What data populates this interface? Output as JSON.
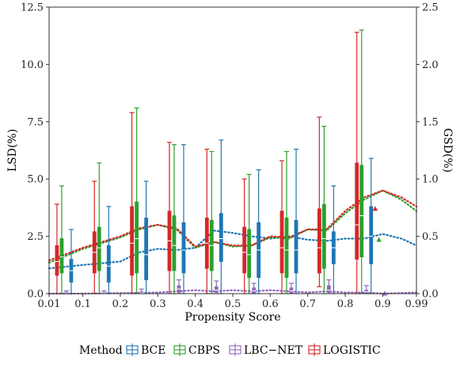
{
  "chart_data": {
    "type": "box-with-smooth-lines",
    "xlabel": "Propensity Score",
    "ylabel_left": "LSD(%)",
    "ylabel_right": "GSD(%)",
    "xlim": [
      0.01,
      0.99
    ],
    "ylim_left": [
      0,
      12.5
    ],
    "ylim_right": [
      0,
      2.5
    ],
    "x_ticks": [
      0.01,
      0.1,
      0.2,
      0.3,
      0.4,
      0.5,
      0.6,
      0.7,
      0.8,
      0.9,
      0.99
    ],
    "x_tick_labels": [
      "0.01",
      "0.1",
      "0.2",
      "0.3",
      "0.4",
      "0.5",
      "0.6",
      "0.7",
      "0.8",
      "0.9",
      "0.99"
    ],
    "y_ticks_left": [
      0,
      2.5,
      5,
      7.5,
      10,
      12.5
    ],
    "y_tick_labels_left": [
      "0.0",
      "2.5",
      "5.0",
      "7.5",
      "10.0",
      "12.5"
    ],
    "y_ticks_right": [
      0,
      0.5,
      1,
      1.5,
      2,
      2.5
    ],
    "y_tick_labels_right": [
      "0.0",
      "0.5",
      "1.0",
      "1.5",
      "2.0",
      "2.5"
    ],
    "grid": false,
    "legend": {
      "title": "Method",
      "placement": "bottom",
      "entries": [
        "BCE",
        "CBPS",
        "LBC−NET",
        "LOGISTIC"
      ]
    },
    "colors": {
      "BCE": "#1f77b4",
      "CBPS": "#2ca02c",
      "LBC-NET": "#9467bd",
      "LOGISTIC": "#d62728"
    },
    "box_groups": [
      {
        "center": 0.05,
        "boxes": {
          "LOGISTIC": {
            "whisker_low": 0.0,
            "q1": 0.8,
            "median": 1.4,
            "q3": 2.1,
            "whisker_high": 3.9
          },
          "CBPS": {
            "whisker_low": 0.0,
            "q1": 0.9,
            "median": 1.6,
            "q3": 2.4,
            "whisker_high": 4.7
          },
          "LBC-NET": {
            "whisker_low": 0.0,
            "q1": 0.0,
            "median": 0.02,
            "q3": 0.05,
            "whisker_high": 0.12
          },
          "BCE": {
            "whisker_low": 0.0,
            "q1": 0.5,
            "median": 1.0,
            "q3": 1.5,
            "whisker_high": 2.8
          }
        }
      },
      {
        "center": 0.15,
        "boxes": {
          "LOGISTIC": {
            "whisker_low": 0.0,
            "q1": 0.9,
            "median": 1.8,
            "q3": 2.7,
            "whisker_high": 4.9
          },
          "CBPS": {
            "whisker_low": 0.0,
            "q1": 1.0,
            "median": 2.0,
            "q3": 2.9,
            "whisker_high": 5.7
          },
          "LBC-NET": {
            "whisker_low": 0.0,
            "q1": 0.0,
            "median": 0.02,
            "q3": 0.05,
            "whisker_high": 0.12
          },
          "BCE": {
            "whisker_low": 0.0,
            "q1": 0.5,
            "median": 1.2,
            "q3": 2.1,
            "whisker_high": 3.8
          }
        }
      },
      {
        "center": 0.25,
        "boxes": {
          "LOGISTIC": {
            "whisker_low": 0.0,
            "q1": 0.8,
            "median": 2.2,
            "q3": 3.8,
            "whisker_high": 7.9
          },
          "CBPS": {
            "whisker_low": 0.0,
            "q1": 0.9,
            "median": 2.4,
            "q3": 4.0,
            "whisker_high": 8.1
          },
          "LBC-NET": {
            "whisker_low": 0.0,
            "q1": 0.0,
            "median": 0.03,
            "q3": 0.08,
            "whisker_high": 0.2
          },
          "BCE": {
            "whisker_low": 0.0,
            "q1": 0.6,
            "median": 1.7,
            "q3": 3.3,
            "whisker_high": 4.9
          }
        }
      },
      {
        "center": 0.35,
        "boxes": {
          "LOGISTIC": {
            "whisker_low": 0.0,
            "q1": 1.0,
            "median": 2.3,
            "q3": 3.6,
            "whisker_high": 6.6
          },
          "CBPS": {
            "whisker_low": 0.0,
            "q1": 1.0,
            "median": 2.1,
            "q3": 3.4,
            "whisker_high": 6.5
          },
          "LBC-NET": {
            "whisker_low": 0.0,
            "q1": 0.05,
            "median": 0.2,
            "q3": 0.35,
            "whisker_high": 0.6
          },
          "BCE": {
            "whisker_low": 0.0,
            "q1": 0.9,
            "median": 1.9,
            "q3": 3.1,
            "whisker_high": 6.5
          }
        }
      },
      {
        "center": 0.45,
        "boxes": {
          "LOGISTIC": {
            "whisker_low": 0.0,
            "q1": 1.1,
            "median": 2.2,
            "q3": 3.3,
            "whisker_high": 6.3
          },
          "CBPS": {
            "whisker_low": 0.0,
            "q1": 1.0,
            "median": 2.1,
            "q3": 3.2,
            "whisker_high": 6.2
          },
          "LBC-NET": {
            "whisker_low": 0.0,
            "q1": 0.05,
            "median": 0.15,
            "q3": 0.3,
            "whisker_high": 0.55
          },
          "BCE": {
            "whisker_low": 0.0,
            "q1": 1.4,
            "median": 2.4,
            "q3": 3.5,
            "whisker_high": 6.7
          }
        }
      },
      {
        "center": 0.55,
        "boxes": {
          "LOGISTIC": {
            "whisker_low": 0.0,
            "q1": 0.9,
            "median": 1.8,
            "q3": 2.9,
            "whisker_high": 5.0
          },
          "CBPS": {
            "whisker_low": 0.0,
            "q1": 0.7,
            "median": 1.7,
            "q3": 2.8,
            "whisker_high": 5.2
          },
          "LBC-NET": {
            "whisker_low": 0.0,
            "q1": 0.03,
            "median": 0.12,
            "q3": 0.25,
            "whisker_high": 0.45
          },
          "BCE": {
            "whisker_low": 0.0,
            "q1": 0.7,
            "median": 1.9,
            "q3": 3.1,
            "whisker_high": 5.4
          }
        }
      },
      {
        "center": 0.65,
        "boxes": {
          "LOGISTIC": {
            "whisker_low": 0.0,
            "q1": 0.9,
            "median": 2.0,
            "q3": 3.6,
            "whisker_high": 5.8
          },
          "CBPS": {
            "whisker_low": 0.0,
            "q1": 0.7,
            "median": 1.9,
            "q3": 3.3,
            "whisker_high": 6.2
          },
          "LBC-NET": {
            "whisker_low": 0.0,
            "q1": 0.03,
            "median": 0.12,
            "q3": 0.25,
            "whisker_high": 0.45
          },
          "BCE": {
            "whisker_low": 0.0,
            "q1": 0.9,
            "median": 1.9,
            "q3": 3.2,
            "whisker_high": 6.3
          }
        }
      },
      {
        "center": 0.75,
        "boxes": {
          "LOGISTIC": {
            "whisker_low": 0.3,
            "q1": 0.9,
            "median": 2.0,
            "q3": 3.7,
            "whisker_high": 7.7
          },
          "CBPS": {
            "whisker_low": 0.0,
            "q1": 1.1,
            "median": 2.4,
            "q3": 3.9,
            "whisker_high": 7.3
          },
          "LBC-NET": {
            "whisker_low": 0.0,
            "q1": 0.05,
            "median": 0.15,
            "q3": 0.35,
            "whisker_high": 0.6
          },
          "BCE": {
            "whisker_low": 0.0,
            "q1": 1.3,
            "median": 2.0,
            "q3": 2.7,
            "whisker_high": 4.7
          }
        }
      },
      {
        "center": 0.85,
        "boxes": {
          "LOGISTIC": {
            "whisker_low": 0.0,
            "q1": 1.5,
            "median": 3.0,
            "q3": 5.7,
            "whisker_high": 11.4
          },
          "CBPS": {
            "whisker_low": 0.0,
            "q1": 1.6,
            "median": 3.4,
            "q3": 5.6,
            "whisker_high": 11.5
          },
          "LBC-NET": {
            "whisker_low": 0.0,
            "q1": 0.02,
            "median": 0.08,
            "q3": 0.15,
            "whisker_high": 0.35
          },
          "BCE": {
            "whisker_low": 0.0,
            "q1": 1.3,
            "median": 2.5,
            "q3": 3.8,
            "whisker_high": 5.9
          }
        }
      }
    ],
    "gsd_series": [
      {
        "name": "BCE",
        "axis": "right",
        "x": [
          0.01,
          0.1,
          0.2,
          0.25,
          0.3,
          0.35,
          0.4,
          0.45,
          0.5,
          0.55,
          0.6,
          0.65,
          0.7,
          0.75,
          0.8,
          0.85,
          0.9,
          0.95,
          0.99
        ],
        "y": [
          0.22,
          0.25,
          0.28,
          0.36,
          0.39,
          0.38,
          0.4,
          0.55,
          0.53,
          0.5,
          0.48,
          0.5,
          0.47,
          0.46,
          0.48,
          0.48,
          0.52,
          0.48,
          0.42
        ]
      },
      {
        "name": "CBPS",
        "axis": "right",
        "x": [
          0.01,
          0.1,
          0.2,
          0.25,
          0.3,
          0.35,
          0.4,
          0.45,
          0.5,
          0.55,
          0.6,
          0.65,
          0.7,
          0.75,
          0.8,
          0.85,
          0.9,
          0.95,
          0.99
        ],
        "y": [
          0.27,
          0.39,
          0.49,
          0.56,
          0.6,
          0.56,
          0.4,
          0.45,
          0.41,
          0.42,
          0.49,
          0.48,
          0.56,
          0.55,
          0.7,
          0.82,
          0.9,
          0.82,
          0.72
        ]
      },
      {
        "name": "LOGISTIC",
        "axis": "right",
        "x": [
          0.01,
          0.1,
          0.2,
          0.25,
          0.3,
          0.35,
          0.4,
          0.45,
          0.5,
          0.55,
          0.6,
          0.65,
          0.7,
          0.75,
          0.8,
          0.85,
          0.9,
          0.95,
          0.99
        ],
        "y": [
          0.29,
          0.4,
          0.5,
          0.57,
          0.6,
          0.57,
          0.41,
          0.45,
          0.42,
          0.42,
          0.5,
          0.49,
          0.56,
          0.56,
          0.72,
          0.84,
          0.9,
          0.84,
          0.76
        ]
      },
      {
        "name": "LBC-NET",
        "axis": "right",
        "x": [
          0.01,
          0.1,
          0.2,
          0.3,
          0.4,
          0.45,
          0.5,
          0.55,
          0.6,
          0.65,
          0.7,
          0.75,
          0.8,
          0.85,
          0.9,
          0.99
        ],
        "y": [
          0.0,
          0.0,
          0.005,
          0.01,
          0.03,
          0.02,
          0.03,
          0.02,
          0.03,
          0.02,
          0.01,
          0.02,
          0.01,
          0.01,
          0.0,
          0.01
        ]
      }
    ],
    "gsd_markers": [
      {
        "name": "CBPS",
        "x": 0.89,
        "y": 0.47
      },
      {
        "name": "LOGISTIC",
        "x": 0.88,
        "y": 0.74
      },
      {
        "name": "BCE",
        "x": 0.905,
        "y": 0.0
      },
      {
        "name": "LBC-NET",
        "x": 0.905,
        "y": 0.0
      }
    ]
  }
}
